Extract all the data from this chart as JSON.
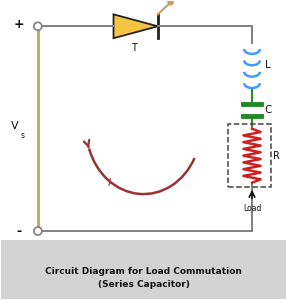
{
  "bg_color": "#ffffff",
  "caption_bg": "#d3d3d3",
  "caption_text": "Circuit Diagram for Load Commutation\n(Series Capacitor)",
  "wire_color": "#808080",
  "vs_wire_color": "#c8a060",
  "plus_label": "+",
  "minus_label": "-",
  "vs_label": "V",
  "vs_sub": "s",
  "T_label": "T",
  "L_label": "L",
  "C_label": "C",
  "R_label": "R",
  "load_label": "Load",
  "I_label": "I",
  "inductor_color": "#4499ff",
  "capacitor_color": "#228822",
  "resistor_color": "#cc2222",
  "current_arrow_color": "#993333",
  "thyristor_body_color": "#f5c542",
  "thyristor_line_color": "#222222",
  "gate_color": "#c8a060",
  "dashed_box_color": "#444444",
  "label_color": "#111111"
}
